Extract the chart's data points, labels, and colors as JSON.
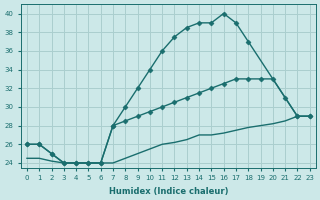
{
  "xlabel": "Humidex (Indice chaleur)",
  "ylabel": "",
  "bg_color": "#cce8e8",
  "grid_color": "#aacece",
  "line_color": "#1a6e6e",
  "xlim": [
    -0.5,
    23.5
  ],
  "ylim": [
    23.5,
    41
  ],
  "xticks": [
    0,
    1,
    2,
    3,
    4,
    5,
    6,
    7,
    8,
    9,
    10,
    11,
    12,
    13,
    14,
    15,
    16,
    17,
    18,
    19,
    20,
    21,
    22,
    23
  ],
  "yticks": [
    24,
    26,
    28,
    30,
    32,
    34,
    36,
    38,
    40
  ],
  "line1_x": [
    0,
    1,
    2,
    3,
    4,
    5,
    6,
    7,
    8,
    9,
    10,
    11,
    12,
    13,
    14,
    15,
    16,
    17,
    18,
    22,
    23
  ],
  "line1_y": [
    26,
    26,
    25,
    24,
    24,
    24,
    24,
    28,
    30,
    32,
    34,
    36,
    37.5,
    38.5,
    39,
    39,
    40,
    39,
    37,
    29,
    29
  ],
  "line2_x": [
    0,
    1,
    2,
    3,
    4,
    5,
    6,
    7,
    8,
    9,
    10,
    11,
    12,
    13,
    14,
    15,
    16,
    17,
    18,
    19,
    20,
    21,
    22,
    23
  ],
  "line2_y": [
    26,
    26,
    25,
    24,
    24,
    24,
    24,
    28,
    28.5,
    29,
    29.5,
    30,
    30.5,
    31,
    31.5,
    32,
    32.5,
    33,
    33,
    33,
    33,
    31,
    29,
    29
  ],
  "line3_x": [
    0,
    1,
    2,
    3,
    4,
    5,
    6,
    7,
    8,
    9,
    10,
    11,
    12,
    13,
    14,
    15,
    16,
    17,
    18,
    19,
    20,
    21,
    22,
    23
  ],
  "line3_y": [
    24.5,
    24.5,
    24.2,
    24,
    24,
    24,
    24,
    24,
    24.5,
    25,
    25.5,
    26,
    26.2,
    26.5,
    27,
    27,
    27.2,
    27.5,
    27.8,
    28,
    28.2,
    28.5,
    29,
    29
  ],
  "marker": "D",
  "markersize": 2.5,
  "linewidth": 1.0
}
